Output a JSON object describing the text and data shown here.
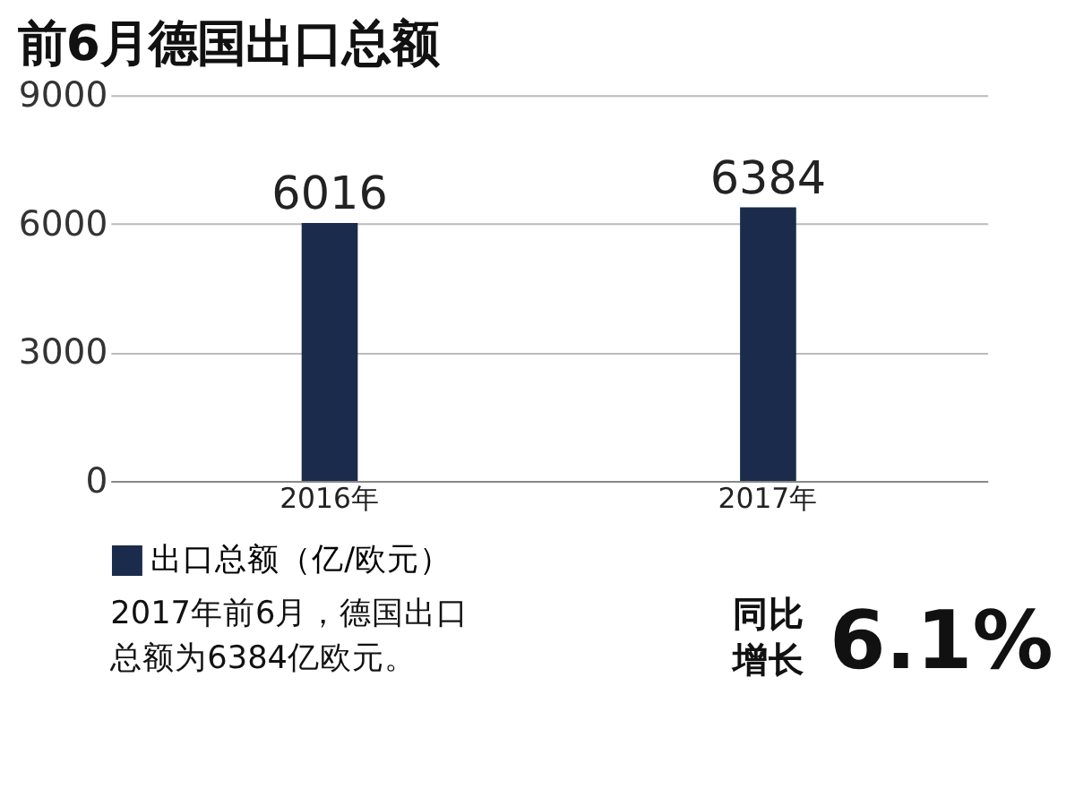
{
  "chart_data": {
    "type": "bar",
    "title": "前6月德国出口总额",
    "categories": [
      "2016年",
      "2017年"
    ],
    "series": [
      {
        "name": "出口总额（亿/欧元）",
        "color": "#1b2b4b",
        "values": [
          6016,
          6384
        ]
      }
    ],
    "ylim": [
      0,
      9000
    ],
    "yticks": [
      0,
      3000,
      6000,
      9000
    ],
    "grid": "y",
    "data_labels": true,
    "legend": "bottom",
    "annotations": [
      "2017年前6月，德国出口总额为6384亿欧元。",
      "同比增长",
      "6.1%"
    ]
  }
}
